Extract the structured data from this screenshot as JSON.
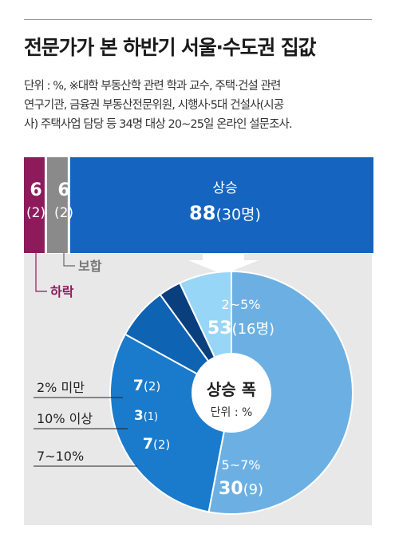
{
  "title": "전문가가 본 하반기 서울·수도권 집값",
  "note_lines": [
    "단위 : %, ※대학 부동산학 관련 학과 교수, 주택·건설 관련",
    "연구기관, 금융권 부동산전문위원, 시행사·5대 건설사(시공",
    "사) 주택사업 담당 등 34명 대상 20~25일 온라인 설문조사."
  ],
  "colors": {
    "fall": "#8e1a5c",
    "hold": "#8a8a8a",
    "rise": "#1565c0",
    "pie_bg": "#e8e8e8",
    "slice_2_5": "#6cb0e3",
    "slice_5_7": "#1a7bcc",
    "slice_7_10": "#0e63b3",
    "slice_10plus": "#0a3f7e",
    "slice_under2": "#97d6f6"
  },
  "chart_data": [
    {
      "type": "bar",
      "orientation": "horizontal-stacked",
      "categories": [
        "하락",
        "보합",
        "상승"
      ],
      "values": [
        6,
        6,
        88
      ],
      "counts": [
        "(2)",
        "(2)",
        "(30명)"
      ],
      "unit": "%"
    },
    {
      "type": "pie",
      "title": "상승 폭",
      "subtitle": "단위 : %",
      "slices": [
        {
          "label": "2~5%",
          "value": 53,
          "count": "(16명)",
          "color": "slice_2_5"
        },
        {
          "label": "5~7%",
          "value": 30,
          "count": "(9)",
          "color": "slice_5_7"
        },
        {
          "label": "7~10%",
          "value": 7,
          "count": "(2)",
          "color": "slice_7_10"
        },
        {
          "label": "10% 이상",
          "value": 3,
          "count": "(1)",
          "color": "slice_10plus"
        },
        {
          "label": "2% 미만",
          "value": 7,
          "count": "(2)",
          "color": "slice_under2"
        }
      ]
    }
  ]
}
